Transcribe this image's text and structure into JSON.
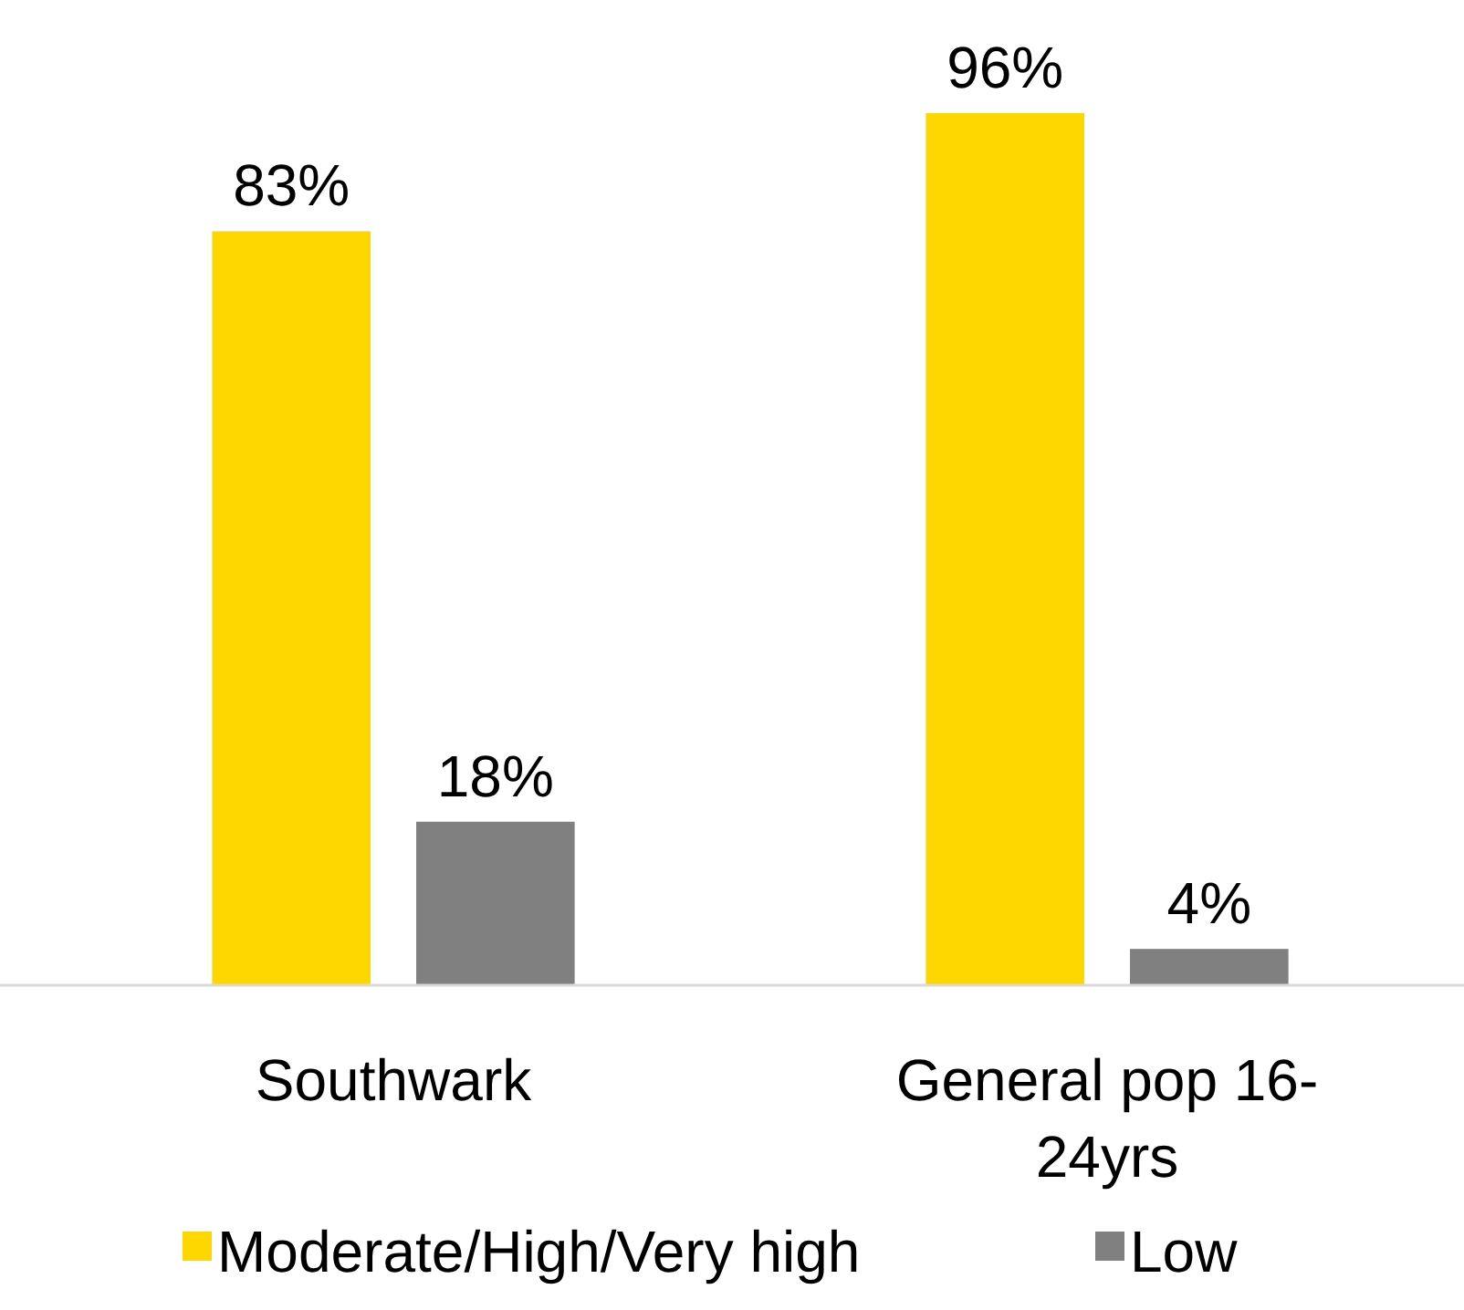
{
  "chart_data": {
    "type": "bar",
    "categories": [
      "Southwark",
      "General pop 16-24yrs"
    ],
    "legend": "bottom",
    "series": [
      {
        "name": "Moderate/High/Very high",
        "color": "#ffd700",
        "values": [
          83,
          96
        ],
        "value_labels": [
          "83%",
          "96%"
        ]
      },
      {
        "name": "Low",
        "color": "#808080",
        "values": [
          18,
          4
        ],
        "value_labels": [
          "18%",
          "4%"
        ]
      }
    ]
  }
}
